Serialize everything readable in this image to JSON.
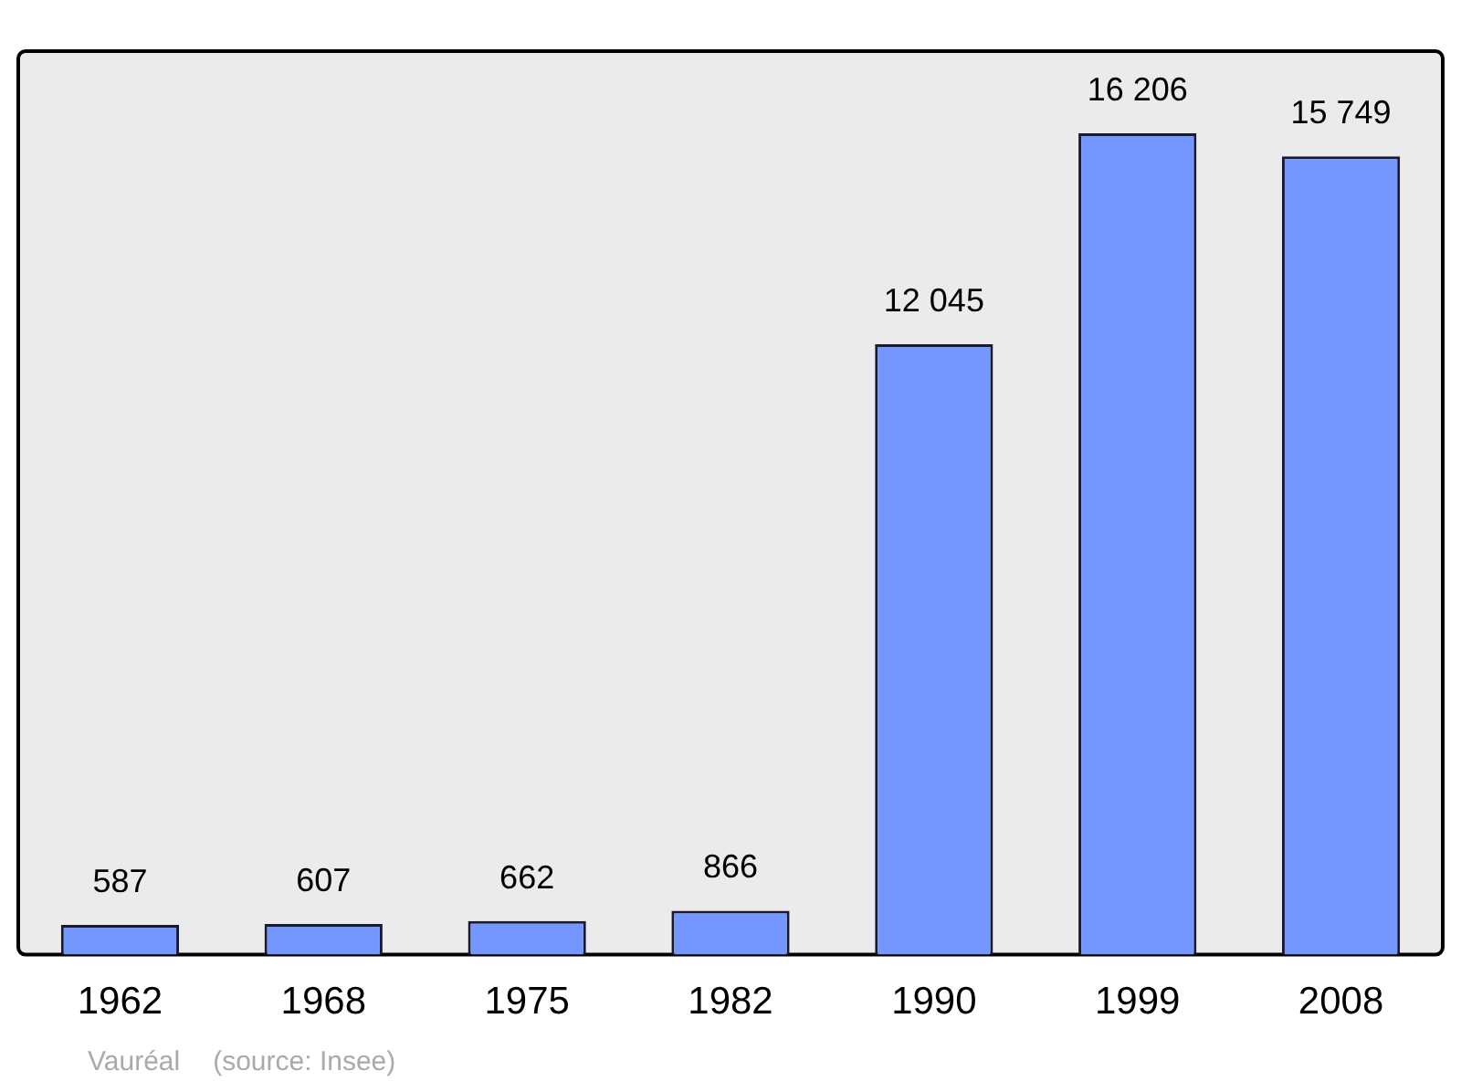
{
  "chart_data": {
    "type": "bar",
    "categories": [
      "1962",
      "1968",
      "1975",
      "1982",
      "1990",
      "1999",
      "2008"
    ],
    "values": [
      587,
      607,
      662,
      866,
      12045,
      16206,
      15749
    ],
    "value_labels": [
      "587",
      "607",
      "662",
      "866",
      "12 045",
      "16 206",
      "15 749"
    ],
    "color": "#7396ff",
    "grid": false,
    "legend": false,
    "annotations": [
      "Vauréal",
      "(source: Insee)"
    ]
  }
}
